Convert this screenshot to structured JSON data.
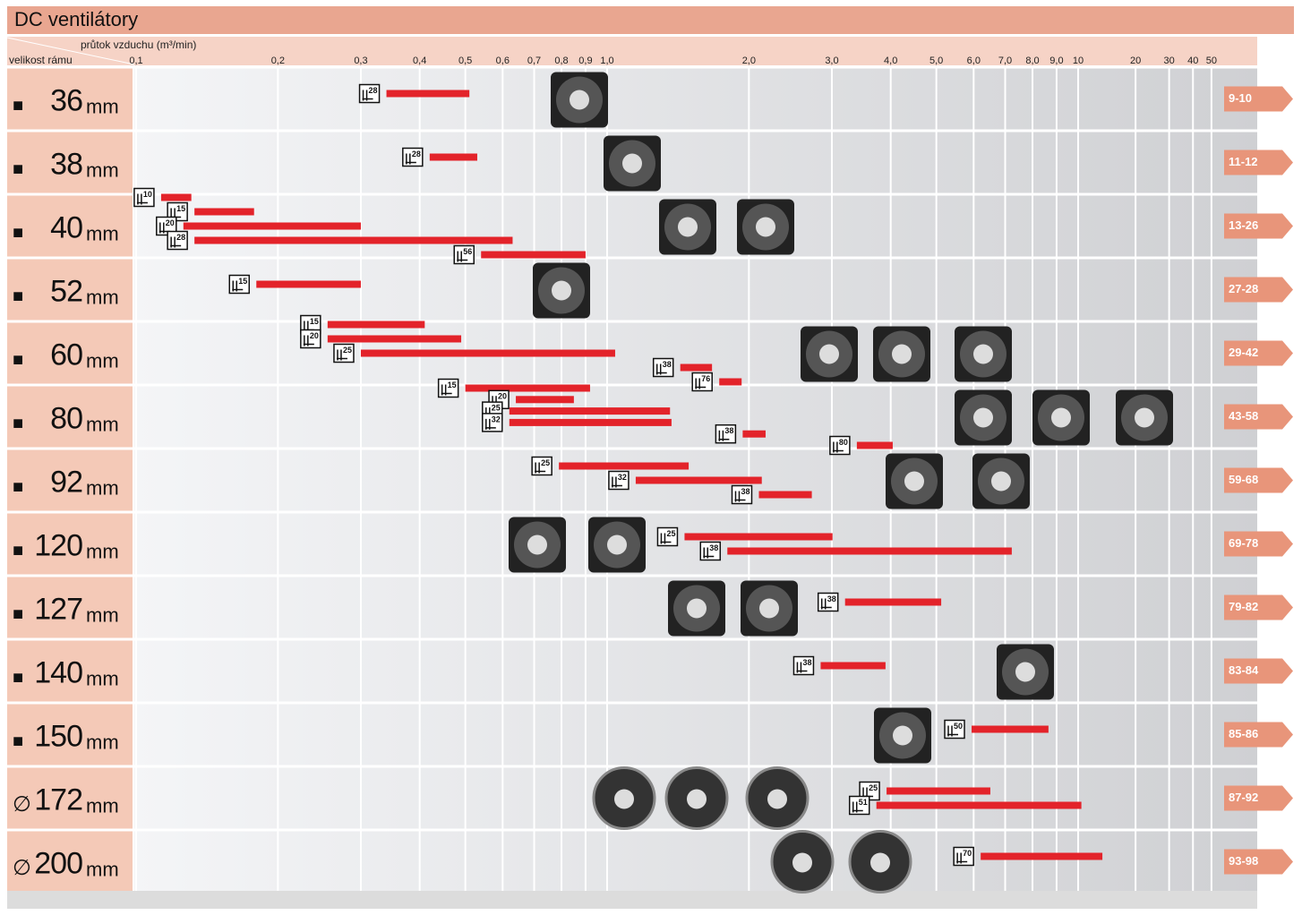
{
  "chart_data": {
    "type": "range",
    "title": "DC ventilátory",
    "x_label": "průtok vzduchu (m³/min)",
    "y_label": "velikost rámu",
    "log_x": true,
    "xlim": [
      0.1,
      80
    ],
    "xticks": [
      {
        "value": 0.1,
        "label": "0,1"
      },
      {
        "value": 0.2,
        "label": "0,2"
      },
      {
        "value": 0.3,
        "label": "0,3"
      },
      {
        "value": 0.4,
        "label": "0,4"
      },
      {
        "value": 0.5,
        "label": "0,5"
      },
      {
        "value": 0.6,
        "label": "0,6"
      },
      {
        "value": 0.7,
        "label": "0,7"
      },
      {
        "value": 0.8,
        "label": "0,8"
      },
      {
        "value": 0.9,
        "label": "0,9"
      },
      {
        "value": 1,
        "label": "1,0"
      },
      {
        "value": 2,
        "label": "2,0"
      },
      {
        "value": 3,
        "label": "3,0"
      },
      {
        "value": 4,
        "label": "4,0"
      },
      {
        "value": 5,
        "label": "5,0"
      },
      {
        "value": 6,
        "label": "6,0"
      },
      {
        "value": 7,
        "label": "7,0"
      },
      {
        "value": 8,
        "label": "8,0"
      },
      {
        "value": 9,
        "label": "9,0"
      },
      10,
      20,
      30,
      40,
      50
    ],
    "bar_color": "#e3232a",
    "rows": [
      {
        "symbol": "■",
        "size": 36,
        "unit": "mm",
        "pages": "9-10",
        "bars": [
          {
            "thickness": 28,
            "from": 0.34,
            "to": 0.51
          }
        ]
      },
      {
        "symbol": "■",
        "size": 38,
        "unit": "mm",
        "pages": "11-12",
        "bars": [
          {
            "thickness": 28,
            "from": 0.42,
            "to": 0.53
          }
        ]
      },
      {
        "symbol": "■",
        "size": 40,
        "unit": "mm",
        "pages": "13-26",
        "bars": [
          {
            "thickness": 10,
            "from": 0.113,
            "to": 0.131
          },
          {
            "thickness": 15,
            "from": 0.133,
            "to": 0.178
          },
          {
            "thickness": 20,
            "from": 0.126,
            "to": 0.3
          },
          {
            "thickness": 28,
            "from": 0.133,
            "to": 0.63
          },
          {
            "thickness": 56,
            "from": 0.54,
            "to": 0.9
          }
        ]
      },
      {
        "symbol": "■",
        "size": 52,
        "unit": "mm",
        "pages": "27-28",
        "bars": [
          {
            "thickness": 15,
            "from": 0.18,
            "to": 0.3
          }
        ]
      },
      {
        "symbol": "■",
        "size": 60,
        "unit": "mm",
        "pages": "29-42",
        "bars": [
          {
            "thickness": 15,
            "from": 0.255,
            "to": 0.41
          },
          {
            "thickness": 20,
            "from": 0.255,
            "to": 0.49
          },
          {
            "thickness": 25,
            "from": 0.3,
            "to": 1.04
          },
          {
            "thickness": 38,
            "from": 1.43,
            "to": 1.67
          },
          {
            "thickness": 76,
            "from": 1.73,
            "to": 1.93
          }
        ]
      },
      {
        "symbol": "■",
        "size": 80,
        "unit": "mm",
        "pages": "43-58",
        "bars": [
          {
            "thickness": 15,
            "from": 0.5,
            "to": 0.92
          },
          {
            "thickness": 20,
            "from": 0.64,
            "to": 0.85
          },
          {
            "thickness": 25,
            "from": 0.62,
            "to": 1.36
          },
          {
            "thickness": 32,
            "from": 0.62,
            "to": 1.37
          },
          {
            "thickness": 38,
            "from": 1.94,
            "to": 2.17
          },
          {
            "thickness": 80,
            "from": 3.39,
            "to": 4.04
          }
        ]
      },
      {
        "symbol": "■",
        "size": 92,
        "unit": "mm",
        "pages": "59-68",
        "bars": [
          {
            "thickness": 25,
            "from": 0.79,
            "to": 1.49
          },
          {
            "thickness": 32,
            "from": 1.15,
            "to": 2.13
          },
          {
            "thickness": 38,
            "from": 2.1,
            "to": 2.72
          }
        ]
      },
      {
        "symbol": "■",
        "size": 120,
        "unit": "mm",
        "pages": "69-78",
        "bars": [
          {
            "thickness": 25,
            "from": 1.46,
            "to": 3.01
          },
          {
            "thickness": 38,
            "from": 1.8,
            "to": 7.23
          }
        ]
      },
      {
        "symbol": "■",
        "size": 127,
        "unit": "mm",
        "pages": "79-82",
        "bars": [
          {
            "thickness": 38,
            "from": 3.2,
            "to": 5.12
          }
        ]
      },
      {
        "symbol": "■",
        "size": 140,
        "unit": "mm",
        "pages": "83-84",
        "bars": [
          {
            "thickness": 38,
            "from": 2.84,
            "to": 3.9
          }
        ]
      },
      {
        "symbol": "■",
        "size": 150,
        "unit": "mm",
        "pages": "85-86",
        "bars": [
          {
            "thickness": 50,
            "from": 5.94,
            "to": 8.65
          }
        ]
      },
      {
        "symbol": "∅",
        "size": 172,
        "unit": "mm",
        "pages": "87-92",
        "bars": [
          {
            "thickness": 25,
            "from": 3.92,
            "to": 6.51
          },
          {
            "thickness": 51,
            "from": 3.73,
            "to": 10.4
          }
        ]
      },
      {
        "symbol": "∅",
        "size": 200,
        "unit": "mm",
        "pages": "93-98",
        "bars": [
          {
            "thickness": 70,
            "from": 6.21,
            "to": 13.4
          }
        ]
      }
    ]
  }
}
